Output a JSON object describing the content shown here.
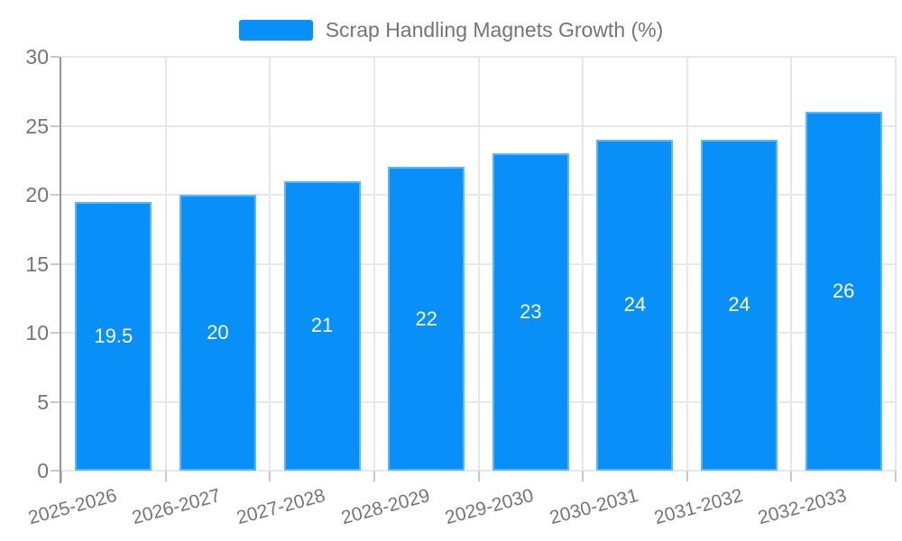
{
  "legend": {
    "label": "Scrap Handling Magnets Growth (%)"
  },
  "chart_data": {
    "type": "bar",
    "title": "Scrap Handling Magnets Growth (%)",
    "xlabel": "",
    "ylabel": "",
    "categories": [
      "2025-2026",
      "2026-2027",
      "2027-2028",
      "2028-2029",
      "2029-2030",
      "2030-2031",
      "2031-2032",
      "2032-2033"
    ],
    "values": [
      19.5,
      20,
      21,
      22,
      23,
      24,
      24,
      26
    ],
    "value_labels": [
      "19.5",
      "20",
      "21",
      "22",
      "23",
      "24",
      "24",
      "26"
    ],
    "ylim": [
      0,
      30
    ],
    "yticks": [
      0,
      5,
      10,
      15,
      20,
      25,
      30
    ],
    "grid": true,
    "legend_position": "top-center",
    "x_label_rotation_deg": -15,
    "colors": {
      "bar": "#0890f8",
      "bar_value_label": "#ffffff",
      "axis_line": "#969696",
      "gridline": "#e8e8e8",
      "tick": "#c9c9c9",
      "tick_label": "#757575",
      "legend_text": "#757575",
      "background": "#ffffff"
    }
  }
}
